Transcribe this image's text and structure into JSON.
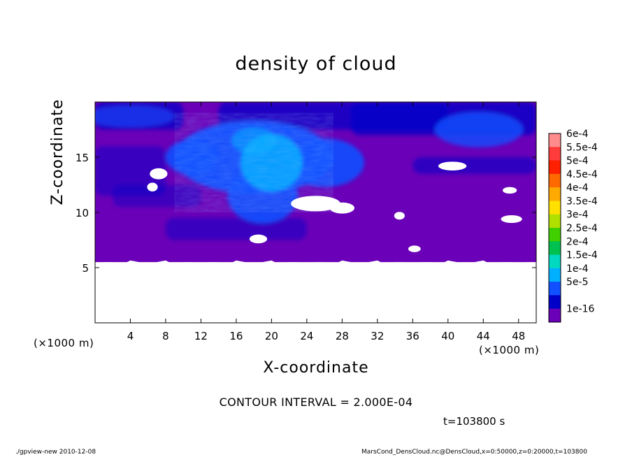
{
  "chart_data": {
    "type": "heatmap",
    "title": "density of cloud",
    "xlabel": "X-coordinate",
    "ylabel": "Z-coordinate",
    "x_unit": "(×1000 m)",
    "x_unit_right": "(×1000 m)",
    "xlim": [
      0,
      50
    ],
    "ylim": [
      0,
      20
    ],
    "x_ticks": [
      "4",
      "8",
      "12",
      "16",
      "20",
      "24",
      "28",
      "32",
      "36",
      "40",
      "44",
      "48"
    ],
    "x_tick_values": [
      4,
      8,
      12,
      16,
      20,
      24,
      28,
      32,
      36,
      40,
      44,
      48
    ],
    "y_ticks": [
      "5",
      "10",
      "15"
    ],
    "y_tick_values": [
      5,
      10,
      15
    ],
    "colorbar": {
      "labels": [
        "6e-4",
        "5.5e-4",
        "5e-4",
        "4.5e-4",
        "4e-4",
        "3.5e-4",
        "3e-4",
        "2.5e-4",
        "2e-4",
        "1.5e-4",
        "1e-4",
        "5e-5",
        "1e-16"
      ],
      "colors": [
        "#ff8c8c",
        "#ff3c3c",
        "#ff2000",
        "#ff6a00",
        "#ffaa00",
        "#ffe000",
        "#b0e000",
        "#40d000",
        "#00c050",
        "#00d8c0",
        "#00b0ff",
        "#1050ff",
        "#0000c8",
        "#6a00b8"
      ]
    },
    "layers": [
      {
        "name": "background",
        "z_range": [
          5.5,
          20
        ],
        "value_class": "1e-16"
      },
      {
        "name": "upper-band",
        "z_range": [
          16.5,
          19.5
        ],
        "value_class": "5e-5"
      },
      {
        "name": "cloud-core",
        "x_center": 18,
        "z_center": 15,
        "value_class": "1e-4"
      },
      {
        "name": "cloud-peak",
        "x_center": 20,
        "z_center": 14.5,
        "value_class": "1.5e-4"
      }
    ],
    "grid": false
  },
  "contour_interval": "CONTOUR INTERVAL = 2.000E-04",
  "time_label": "t=103800 s",
  "footer_left": "./gpview-new   2010-12-08",
  "footer_right": "MarsCond_DensCloud.nc@DensCloud,x=0:50000,z=0:20000,t=103800"
}
